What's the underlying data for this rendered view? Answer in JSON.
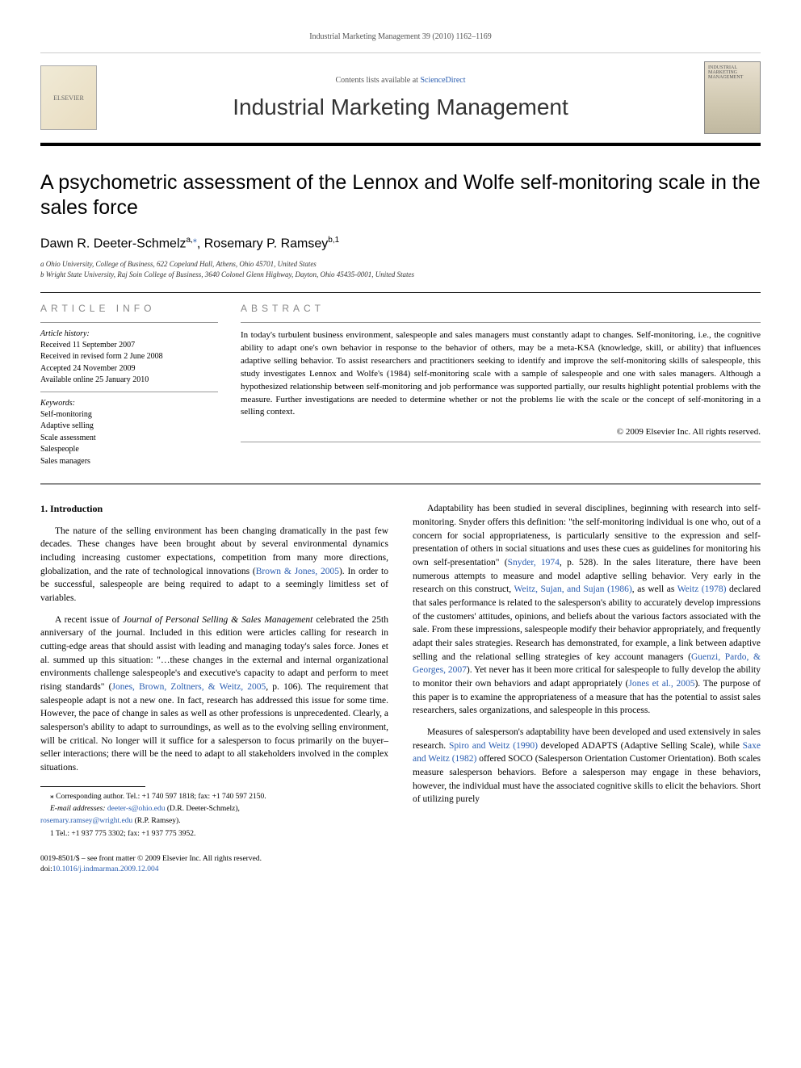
{
  "running_head": "Industrial Marketing Management 39 (2010) 1162–1169",
  "header": {
    "contents_prefix": "Contents lists available at ",
    "contents_link": "ScienceDirect",
    "journal_name": "Industrial Marketing Management",
    "elsevier_text": "ELSEVIER",
    "cover_text": "INDUSTRIAL MARKETING MANAGEMENT"
  },
  "title": "A psychometric assessment of the Lennox and Wolfe self-monitoring scale in the sales force",
  "authors": {
    "list": "Dawn R. Deeter-Schmelz",
    "sup1": "a,",
    "star": "⁎",
    "sep": ", Rosemary P. Ramsey",
    "sup2": "b,1"
  },
  "affiliations": {
    "a": "a Ohio University, College of Business, 622 Copeland Hall, Athens, Ohio 45701, United States",
    "b": "b Wright State University, Raj Soin College of Business, 3640 Colonel Glenn Highway, Dayton, Ohio 45435-0001, United States"
  },
  "article_info": {
    "heading": "ARTICLE INFO",
    "history_label": "Article history:",
    "received": "Received 11 September 2007",
    "revised": "Received in revised form 2 June 2008",
    "accepted": "Accepted 24 November 2009",
    "online": "Available online 25 January 2010",
    "keywords_label": "Keywords:",
    "kw1": "Self-monitoring",
    "kw2": "Adaptive selling",
    "kw3": "Scale assessment",
    "kw4": "Salespeople",
    "kw5": "Sales managers"
  },
  "abstract": {
    "heading": "ABSTRACT",
    "text": "In today's turbulent business environment, salespeople and sales managers must constantly adapt to changes. Self-monitoring, i.e., the cognitive ability to adapt one's own behavior in response to the behavior of others, may be a meta-KSA (knowledge, skill, or ability) that influences adaptive selling behavior. To assist researchers and practitioners seeking to identify and improve the self-monitoring skills of salespeople, this study investigates Lennox and Wolfe's (1984) self-monitoring scale with a sample of salespeople and one with sales managers. Although a hypothesized relationship between self-monitoring and job performance was supported partially, our results highlight potential problems with the measure. Further investigations are needed to determine whether or not the problems lie with the scale or the concept of self-monitoring in a selling context.",
    "copyright": "© 2009 Elsevier Inc. All rights reserved."
  },
  "body": {
    "section1_heading": "1. Introduction",
    "p1a": "The nature of the selling environment has been changing dramatically in the past few decades. These changes have been brought about by several environmental dynamics including increasing customer expectations, competition from many more directions, globalization, and the rate of technological innovations (",
    "p1_link1": "Brown & Jones, 2005",
    "p1b": "). In order to be successful, salespeople are being required to adapt to a seemingly limitless set of variables.",
    "p2a": "A recent issue of ",
    "p2_em": "Journal of Personal Selling & Sales Management",
    "p2b": " celebrated the 25th anniversary of the journal. Included in this edition were articles calling for research in cutting-edge areas that should assist with leading and managing today's sales force. Jones et al. summed up this situation: \"…these changes in the external and internal organizational environments challenge salespeople's and executive's capacity to adapt and perform to meet rising standards\" (",
    "p2_link1": "Jones, Brown, Zoltners, & Weitz, 2005",
    "p2c": ", p. 106). The requirement that salespeople adapt is not a new one. In fact, research has addressed this issue for some time. However, the pace of change in sales as well as other professions is unprecedented. Clearly, a salesperson's ability to adapt to surroundings, as well as to the evolving selling environment, will be critical. No longer will it suffice for a salesperson to focus primarily on the buyer–seller interactions; there will be the need to adapt to all stakeholders involved in the complex situations.",
    "p3a": "Adaptability has been studied in several disciplines, beginning with research into self-monitoring. Snyder offers this definition: \"the self-monitoring individual is one who, out of a concern for social appropriateness, is particularly sensitive to the expression and self-presentation of others in social situations and uses these cues as guidelines for monitoring his own self-presentation\" (",
    "p3_link1": "Snyder, 1974",
    "p3b": ", p. 528). In the sales literature, there have been numerous attempts to measure and model adaptive selling behavior. Very early in the research on this construct, ",
    "p3_link2": "Weitz, Sujan, and Sujan (1986)",
    "p3c": ", as well as ",
    "p3_link3": "Weitz (1978)",
    "p3d": " declared that sales performance is related to the salesperson's ability to accurately develop impressions of the customers' attitudes, opinions, and beliefs about the various factors associated with the sale. From these impressions, salespeople modify their behavior appropriately, and frequently adapt their sales strategies. Research has demonstrated, for example, a link between adaptive selling and the relational selling strategies of key account managers (",
    "p3_link4": "Guenzi, Pardo, & Georges, 2007",
    "p3e": "). Yet never has it been more critical for salespeople to fully develop the ability to monitor their own behaviors and adapt appropriately (",
    "p3_link5": "Jones et al., 2005",
    "p3f": "). The purpose of this paper is to examine the appropriateness of a measure that has the potential to assist sales researchers, sales organizations, and salespeople in this process.",
    "p4a": "Measures of salesperson's adaptability have been developed and used extensively in sales research. ",
    "p4_link1": "Spiro and Weitz (1990)",
    "p4b": " developed ADAPTS (Adaptive Selling Scale), while ",
    "p4_link2": "Saxe and Weitz (1982)",
    "p4c": " offered SOCO (Salesperson Orientation Customer Orientation). Both scales measure salesperson behaviors. Before a salesperson may engage in these behaviors, however, the individual must have the associated cognitive skills to elicit the behaviors. Short of utilizing purely"
  },
  "footnotes": {
    "corr": "⁎ Corresponding author. Tel.: +1 740 597 1818; fax: +1 740 597 2150.",
    "email_label": "E-mail addresses: ",
    "email1": "deeter-s@ohio.edu",
    "email1_name": " (D.R. Deeter-Schmelz),",
    "email2": "rosemary.ramsey@wright.edu",
    "email2_name": " (R.P. Ramsey).",
    "fn1": "1  Tel.: +1 937 775 3302; fax: +1 937 775 3952."
  },
  "footer": {
    "line1": "0019-8501/$ – see front matter © 2009 Elsevier Inc. All rights reserved.",
    "doi_prefix": "doi:",
    "doi": "10.1016/j.indmarman.2009.12.004"
  },
  "colors": {
    "link": "#2a5db0",
    "text": "#000000",
    "muted": "#888888"
  }
}
